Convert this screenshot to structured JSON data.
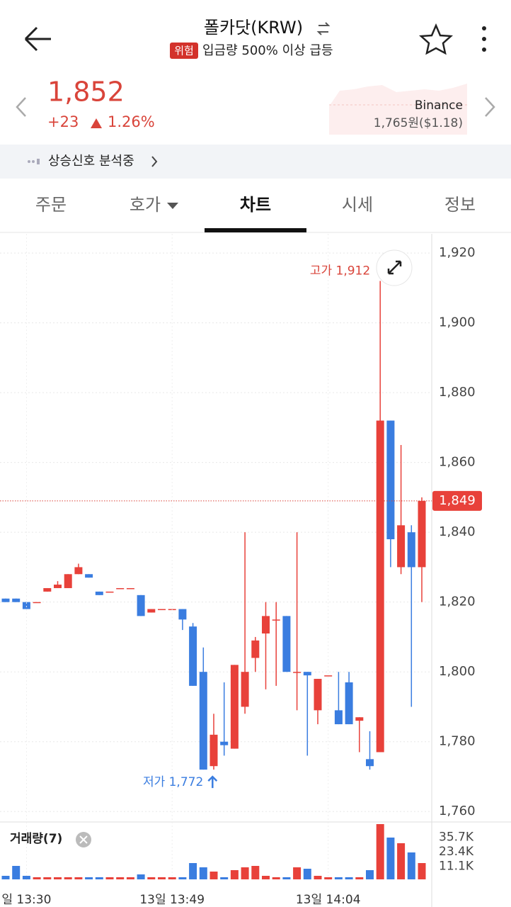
{
  "header": {
    "title": "폴카닷(KRW)",
    "badge": "위험",
    "alert": "입금량 500% 이상 급등"
  },
  "quote": {
    "price": "1,852",
    "change": "+23",
    "change_pct": "1.26%",
    "exchange": "Binance",
    "exchange_price": "1,765원($1.18)"
  },
  "signal": "상승신호 분석중",
  "tabs": [
    "주문",
    "호가",
    "차트",
    "시세",
    "정보"
  ],
  "chart_data": {
    "type": "candlestick",
    "up_color": "#e8413a",
    "down_color": "#3a7de0",
    "grid": true,
    "ylim": [
      1757,
      1925.5
    ],
    "yticks": [
      {
        "value": 1760,
        "label": "1,760"
      },
      {
        "value": 1780,
        "label": "1,780"
      },
      {
        "value": 1800,
        "label": "1,800"
      },
      {
        "value": 1820,
        "label": "1,820"
      },
      {
        "value": 1840,
        "label": "1,840"
      },
      {
        "value": 1860,
        "label": "1,860"
      },
      {
        "value": 1880,
        "label": "1,880"
      },
      {
        "value": 1900,
        "label": "1,900"
      },
      {
        "value": 1920,
        "label": "1,920"
      }
    ],
    "categories": [
      null,
      null,
      "일 13:30",
      null,
      null,
      null,
      null,
      null,
      null,
      null,
      null,
      null,
      null,
      null,
      null,
      null,
      "13일 13:49",
      null,
      null,
      null,
      null,
      null,
      null,
      null,
      null,
      null,
      null,
      null,
      null,
      null,
      null,
      "13일 14:04",
      null,
      null,
      null,
      null,
      null,
      null,
      null,
      null,
      null
    ],
    "open": [
      1821,
      1821,
      1820,
      1820,
      1823,
      1824,
      1824,
      1828,
      1828,
      1823,
      1823,
      1824,
      1824,
      1822,
      1817,
      1818,
      1818,
      1818,
      1813,
      1800,
      1773,
      1780,
      1778,
      1790,
      1804,
      1811,
      1815,
      1816,
      1800,
      1800,
      1789,
      1799,
      1789,
      1797,
      1786,
      1775,
      1777,
      1872,
      1830,
      1840,
      1830
    ],
    "high": [
      1821,
      1821,
      1820,
      1820,
      1824,
      1826,
      1828,
      1831,
      1828,
      1823,
      1823,
      1824,
      1824,
      1822,
      1818,
      1818,
      1818,
      1818,
      1814,
      1807,
      1788,
      1797,
      1802,
      1840,
      1810,
      1820,
      1820,
      1816,
      1840,
      1800,
      1798,
      1799,
      1800,
      1800,
      1787,
      1783,
      1912,
      1872,
      1865,
      1842,
      1850
    ],
    "low": [
      1820,
      1820,
      1818,
      1820,
      1823,
      1824,
      1824,
      1828,
      1827,
      1822,
      1823,
      1824,
      1824,
      1816,
      1817,
      1818,
      1818,
      1812,
      1796,
      1772,
      1772,
      1776,
      1778,
      1788,
      1800,
      1795,
      1796,
      1800,
      1789,
      1776,
      1785,
      1799,
      1785,
      1785,
      1777,
      1772,
      1777,
      1830,
      1828,
      1790,
      1820
    ],
    "close": [
      1820,
      1820,
      1818,
      1820,
      1824,
      1825,
      1828,
      1830,
      1827,
      1822,
      1823,
      1824,
      1824,
      1816,
      1818,
      1818,
      1818,
      1815,
      1796,
      1772,
      1782,
      1779,
      1802,
      1800,
      1809,
      1816,
      1815,
      1800,
      1800,
      1799,
      1798,
      1799,
      1785,
      1785,
      1787,
      1773,
      1872,
      1838,
      1842,
      1830,
      1849
    ],
    "annotations": [
      {
        "label": "고가 1,912",
        "index": 36
      },
      {
        "label": "저가 1,772",
        "index": 19
      }
    ],
    "current_price": {
      "value": 1849,
      "label": "1,849"
    },
    "volume": {
      "title": "거래량(7)",
      "ylim": [
        0,
        47400
      ],
      "yticks": [
        {
          "value": 11100,
          "label": "11.1K"
        },
        {
          "value": 23400,
          "label": "23.4K"
        },
        {
          "value": 35700,
          "label": "35.7K"
        }
      ],
      "values": [
        3000,
        11400,
        3000,
        1800,
        1800,
        1800,
        1800,
        1800,
        1800,
        1800,
        1800,
        1800,
        1800,
        4200,
        1800,
        1800,
        1800,
        1800,
        13800,
        10200,
        6600,
        1800,
        7800,
        10200,
        11400,
        3000,
        1800,
        1800,
        10200,
        9000,
        3000,
        1800,
        1800,
        1800,
        1800,
        7800,
        46800,
        35400,
        30600,
        22800,
        13800
      ]
    }
  }
}
